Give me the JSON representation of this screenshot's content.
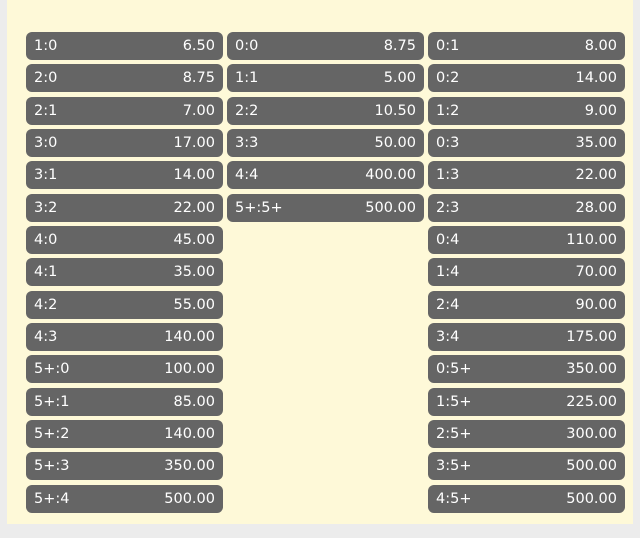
{
  "colors": {
    "background": "#fef9d8",
    "cell": "#656565",
    "text": "#ffffff"
  },
  "columns": [
    {
      "name": "home-wins",
      "items": [
        {
          "score": "1:0",
          "odds": "6.50"
        },
        {
          "score": "2:0",
          "odds": "8.75"
        },
        {
          "score": "2:1",
          "odds": "7.00"
        },
        {
          "score": "3:0",
          "odds": "17.00"
        },
        {
          "score": "3:1",
          "odds": "14.00"
        },
        {
          "score": "3:2",
          "odds": "22.00"
        },
        {
          "score": "4:0",
          "odds": "45.00"
        },
        {
          "score": "4:1",
          "odds": "35.00"
        },
        {
          "score": "4:2",
          "odds": "55.00"
        },
        {
          "score": "4:3",
          "odds": "140.00"
        },
        {
          "score": "5+:0",
          "odds": "100.00"
        },
        {
          "score": "5+:1",
          "odds": "85.00"
        },
        {
          "score": "5+:2",
          "odds": "140.00"
        },
        {
          "score": "5+:3",
          "odds": "350.00"
        },
        {
          "score": "5+:4",
          "odds": "500.00"
        }
      ]
    },
    {
      "name": "draws",
      "items": [
        {
          "score": "0:0",
          "odds": "8.75"
        },
        {
          "score": "1:1",
          "odds": "5.00"
        },
        {
          "score": "2:2",
          "odds": "10.50"
        },
        {
          "score": "3:3",
          "odds": "50.00"
        },
        {
          "score": "4:4",
          "odds": "400.00"
        },
        {
          "score": "5+:5+",
          "odds": "500.00"
        }
      ]
    },
    {
      "name": "away-wins",
      "items": [
        {
          "score": "0:1",
          "odds": "8.00"
        },
        {
          "score": "0:2",
          "odds": "14.00"
        },
        {
          "score": "1:2",
          "odds": "9.00"
        },
        {
          "score": "0:3",
          "odds": "35.00"
        },
        {
          "score": "1:3",
          "odds": "22.00"
        },
        {
          "score": "2:3",
          "odds": "28.00"
        },
        {
          "score": "0:4",
          "odds": "110.00"
        },
        {
          "score": "1:4",
          "odds": "70.00"
        },
        {
          "score": "2:4",
          "odds": "90.00"
        },
        {
          "score": "3:4",
          "odds": "175.00"
        },
        {
          "score": "0:5+",
          "odds": "350.00"
        },
        {
          "score": "1:5+",
          "odds": "225.00"
        },
        {
          "score": "2:5+",
          "odds": "300.00"
        },
        {
          "score": "3:5+",
          "odds": "500.00"
        },
        {
          "score": "4:5+",
          "odds": "500.00"
        }
      ]
    }
  ]
}
